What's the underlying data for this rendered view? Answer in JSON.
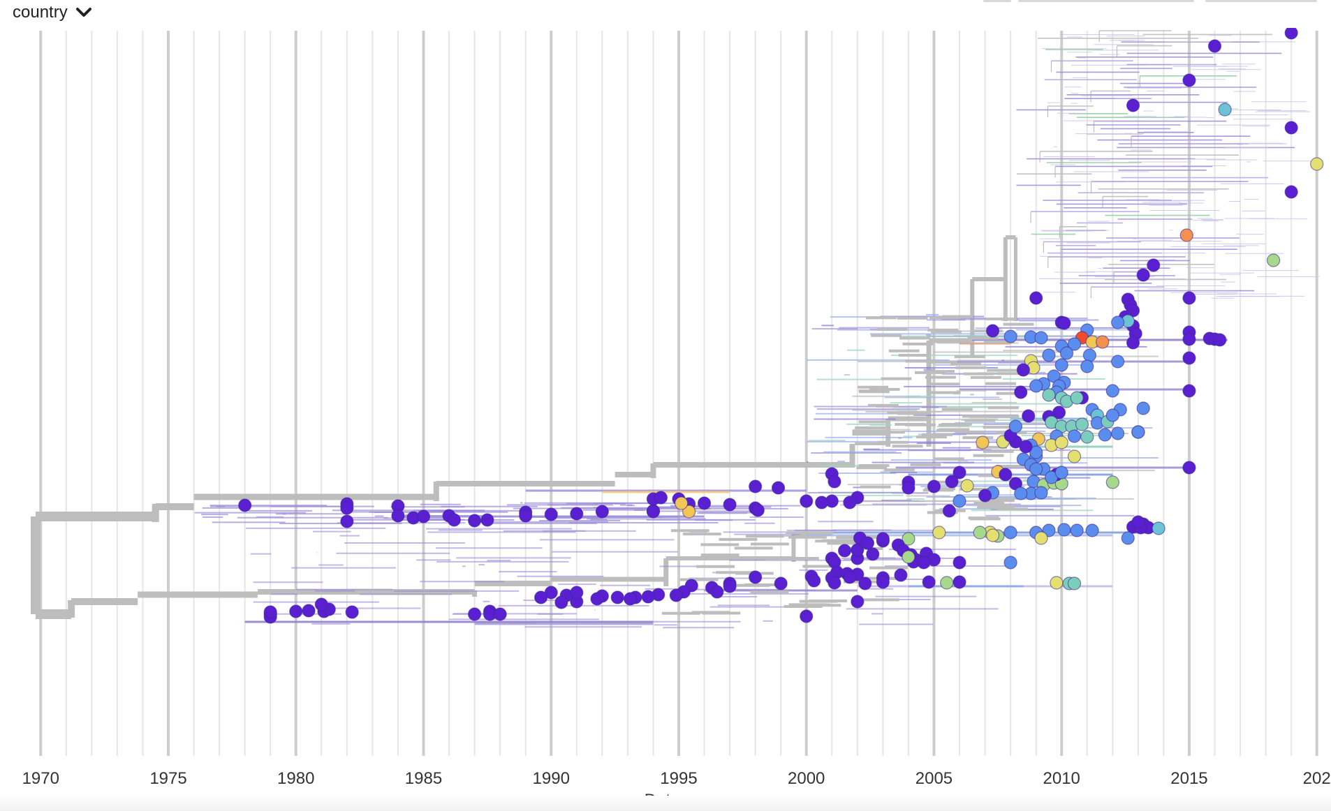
{
  "controls": {
    "color_by_label": "country",
    "dropdown_icon": "chevron-down-icon"
  },
  "chart_data": {
    "type": "scatter",
    "subtype": "time-scaled phylogenetic tree",
    "xlabel": "Date",
    "xlim": [
      1969.5,
      2020.2
    ],
    "x_ticks": [
      "1970",
      "1975",
      "1980",
      "1985",
      "1990",
      "1995",
      "2000",
      "2005",
      "2010",
      "2015",
      "202"
    ],
    "grid": true,
    "legend": "none",
    "branch_color": "#bdbdbd",
    "colors": {
      "violet": "#5a1fd1",
      "blue": "#5b8def",
      "teal": "#7ccdbb",
      "cyan": "#6cc3d5",
      "yellow": "#e4e070",
      "gold": "#f2c655",
      "orange": "#f4914e",
      "red": "#ef4b2e",
      "lightgreen": "#a6d98a"
    },
    "tip_count_shown": 246
  }
}
